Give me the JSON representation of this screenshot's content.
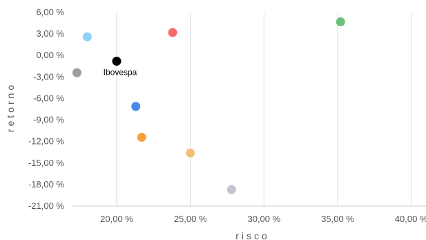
{
  "chart_data": {
    "type": "scatter",
    "xlabel": "risco",
    "ylabel": "retorno",
    "xlim": [
      17.0,
      41.0
    ],
    "ylim": [
      -21.0,
      6.0
    ],
    "x_ticks": [
      "20,00 %",
      "25,00 %",
      "30,00 %",
      "35,00 %",
      "40,00 %"
    ],
    "x_tick_values": [
      20,
      25,
      30,
      35,
      40
    ],
    "y_ticks": [
      "6,00 %",
      "3,00 %",
      "0,00 %",
      "-3,00 %",
      "-6,00 %",
      "-9,00 %",
      "-12,00 %",
      "-15,00 %",
      "-18,00 %",
      "-21,00 %"
    ],
    "y_tick_values": [
      6,
      3,
      0,
      -3,
      -6,
      -9,
      -12,
      -15,
      -18,
      -21
    ],
    "grid": "vertical",
    "points": [
      {
        "x": 18.0,
        "y": 2.6,
        "color": "#8ed3f5"
      },
      {
        "x": 23.8,
        "y": 3.2,
        "color": "#f56b6b"
      },
      {
        "x": 35.2,
        "y": 4.7,
        "color": "#6bbf7b"
      },
      {
        "x": 17.3,
        "y": -2.4,
        "color": "#9e9e9e"
      },
      {
        "x": 20.0,
        "y": -0.8,
        "color": "#000000",
        "label": "Ibovespa"
      },
      {
        "x": 21.3,
        "y": -7.1,
        "color": "#4a89e8"
      },
      {
        "x": 21.7,
        "y": -11.4,
        "color": "#f5a03a"
      },
      {
        "x": 25.0,
        "y": -13.6,
        "color": "#f0c27e"
      },
      {
        "x": 27.8,
        "y": -18.7,
        "color": "#c4c4d4"
      }
    ]
  }
}
